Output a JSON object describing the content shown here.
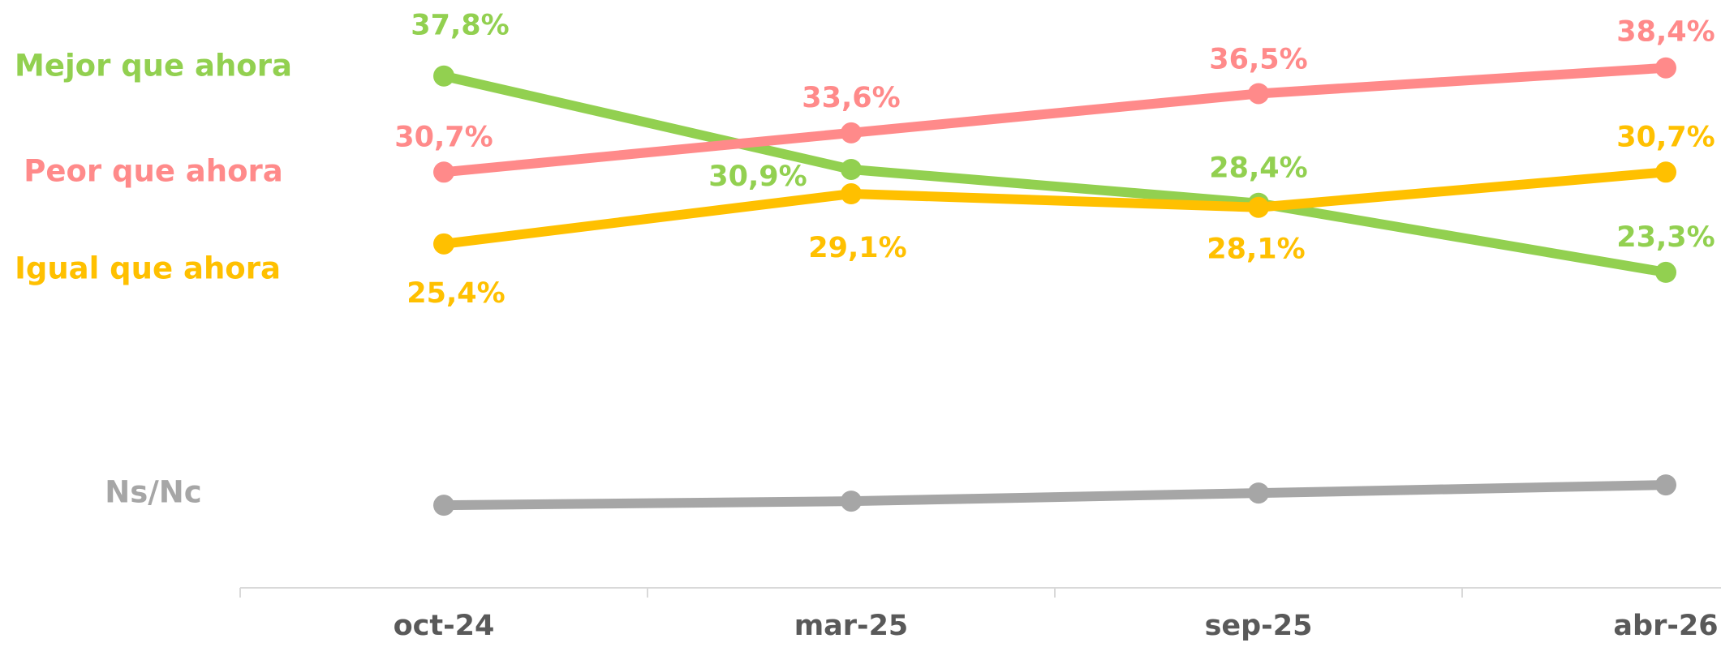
{
  "chart_data": {
    "type": "line",
    "categories": [
      "oct-24",
      "mar-25",
      "sep-25",
      "abr-26"
    ],
    "series": [
      {
        "name": "Mejor que ahora",
        "color": "#92d050",
        "values": [
          37.8,
          30.9,
          28.4,
          23.3
        ],
        "value_labels": [
          "37,8%",
          "30,9%",
          "28,4%",
          "23,3%"
        ]
      },
      {
        "name": "Peor que ahora",
        "color": "#ff8a8a",
        "values": [
          30.7,
          33.6,
          36.5,
          38.4
        ],
        "value_labels": [
          "30,7%",
          "33,6%",
          "36,5%",
          "38,4%"
        ]
      },
      {
        "name": "Igual que ahora",
        "color": "#ffc000",
        "values": [
          25.4,
          29.1,
          28.1,
          30.7
        ],
        "value_labels": [
          "25,4%",
          "29,1%",
          "28,1%",
          "30,7%"
        ]
      },
      {
        "name": "Ns/Nc",
        "color": "#a6a6a6",
        "values": [
          6.1,
          6.4,
          7.0,
          7.6
        ]
      }
    ],
    "ylim": [
      0,
      40
    ]
  }
}
